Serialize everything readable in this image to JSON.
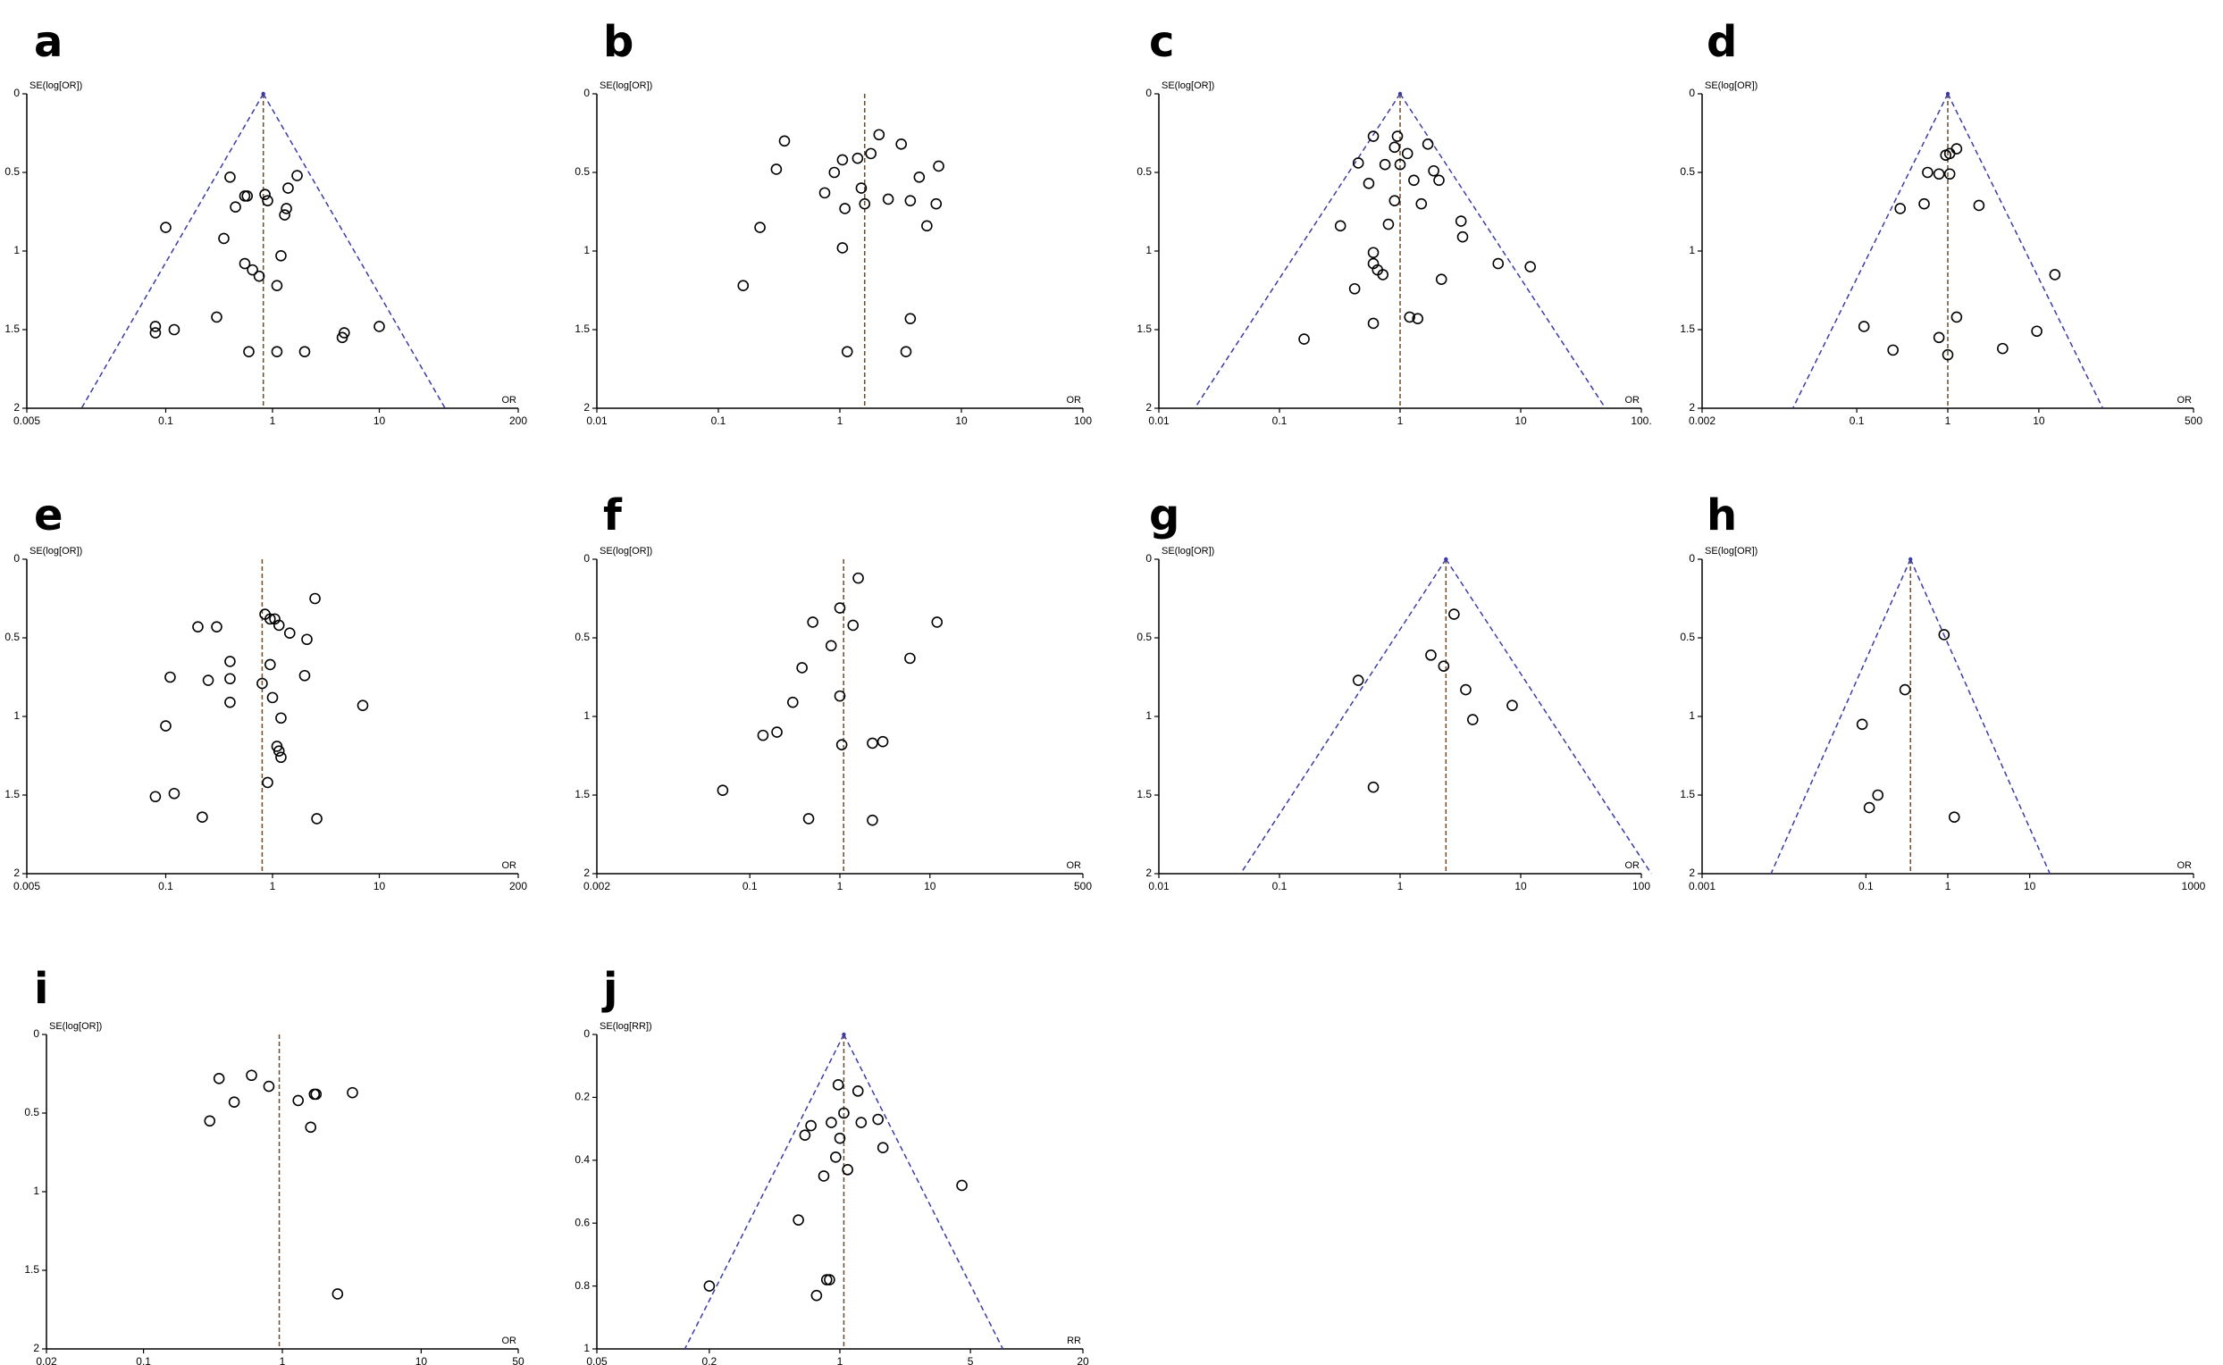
{
  "chart_data": [
    {
      "id": "a",
      "label": "a",
      "type": "scatter",
      "xlabel": "OR",
      "ylabel": "SE(log[OR])",
      "xscale": "log",
      "xlim": [
        0.005,
        200
      ],
      "ylim": [
        0,
        2
      ],
      "xticks": [
        "0.005",
        "0.1",
        "1",
        "10",
        "200"
      ],
      "yticks": [
        "0",
        "0.5",
        "1",
        "1.5",
        "2"
      ],
      "pooled": 0.82,
      "funnel": true,
      "points": [
        [
          0.1,
          0.85
        ],
        [
          0.08,
          1.48
        ],
        [
          0.08,
          1.52
        ],
        [
          0.12,
          1.5
        ],
        [
          0.4,
          0.53
        ],
        [
          0.45,
          0.72
        ],
        [
          0.55,
          0.65
        ],
        [
          0.58,
          0.65
        ],
        [
          0.35,
          0.92
        ],
        [
          0.55,
          1.08
        ],
        [
          0.65,
          1.12
        ],
        [
          0.75,
          1.16
        ],
        [
          0.6,
          1.64
        ],
        [
          0.85,
          0.64
        ],
        [
          0.9,
          0.68
        ],
        [
          1.1,
          1.22
        ],
        [
          1.2,
          1.03
        ],
        [
          1.3,
          0.77
        ],
        [
          1.35,
          0.73
        ],
        [
          1.4,
          0.6
        ],
        [
          1.7,
          0.52
        ],
        [
          1.1,
          1.64
        ],
        [
          2.0,
          1.64
        ],
        [
          4.5,
          1.55
        ],
        [
          4.7,
          1.52
        ],
        [
          10,
          1.48
        ],
        [
          0.3,
          1.42
        ]
      ]
    },
    {
      "id": "b",
      "label": "b",
      "type": "scatter",
      "xlabel": "OR",
      "ylabel": "SE(log[OR])",
      "xscale": "log",
      "xlim": [
        0.01,
        100
      ],
      "ylim": [
        0,
        2
      ],
      "xticks": [
        "0.01",
        "0.1",
        "1",
        "10",
        "100"
      ],
      "yticks": [
        "0",
        "0.5",
        "1",
        "1.5",
        "2"
      ],
      "pooled": 1.6,
      "funnel": false,
      "points": [
        [
          0.35,
          0.3
        ],
        [
          0.3,
          0.48
        ],
        [
          0.22,
          0.85
        ],
        [
          0.75,
          0.63
        ],
        [
          0.9,
          0.5
        ],
        [
          1.05,
          0.42
        ],
        [
          1.1,
          0.73
        ],
        [
          1.05,
          0.98
        ],
        [
          0.16,
          1.22
        ],
        [
          1.4,
          0.41
        ],
        [
          1.5,
          0.6
        ],
        [
          1.6,
          0.7
        ],
        [
          1.8,
          0.38
        ],
        [
          2.1,
          0.26
        ],
        [
          2.5,
          0.67
        ],
        [
          3.2,
          0.32
        ],
        [
          3.8,
          0.68
        ],
        [
          4.5,
          0.53
        ],
        [
          5.2,
          0.84
        ],
        [
          6.2,
          0.7
        ],
        [
          6.5,
          0.46
        ],
        [
          1.15,
          1.64
        ],
        [
          3.5,
          1.64
        ],
        [
          3.8,
          1.43
        ]
      ]
    },
    {
      "id": "c",
      "label": "c",
      "type": "scatter",
      "xlabel": "OR",
      "ylabel": "SE(log[OR])",
      "xscale": "log",
      "xlim": [
        0.01,
        100
      ],
      "ylim": [
        0,
        2
      ],
      "xticks": [
        "0.01",
        "0.1",
        "1",
        "10",
        "100."
      ],
      "yticks": [
        "0",
        "0.5",
        "1",
        "1.5",
        "2"
      ],
      "pooled": 1.0,
      "funnel": true,
      "points": [
        [
          0.6,
          0.27
        ],
        [
          0.45,
          0.44
        ],
        [
          0.75,
          0.45
        ],
        [
          0.95,
          0.27
        ],
        [
          0.9,
          0.34
        ],
        [
          1.0,
          0.45
        ],
        [
          1.15,
          0.38
        ],
        [
          1.3,
          0.55
        ],
        [
          1.7,
          0.32
        ],
        [
          1.9,
          0.49
        ],
        [
          2.1,
          0.55
        ],
        [
          0.55,
          0.57
        ],
        [
          0.9,
          0.68
        ],
        [
          1.5,
          0.7
        ],
        [
          0.8,
          0.83
        ],
        [
          0.32,
          0.84
        ],
        [
          0.6,
          1.01
        ],
        [
          0.6,
          1.08
        ],
        [
          0.65,
          1.12
        ],
        [
          0.72,
          1.15
        ],
        [
          0.42,
          1.24
        ],
        [
          3.2,
          0.81
        ],
        [
          3.3,
          0.91
        ],
        [
          2.2,
          1.18
        ],
        [
          6.5,
          1.08
        ],
        [
          12,
          1.1
        ],
        [
          0.16,
          1.56
        ],
        [
          0.6,
          1.46
        ],
        [
          1.2,
          1.42
        ],
        [
          1.4,
          1.43
        ]
      ]
    },
    {
      "id": "d",
      "label": "d",
      "type": "scatter",
      "xlabel": "OR",
      "ylabel": "SE(log[OR])",
      "xscale": "log",
      "xlim": [
        0.002,
        500
      ],
      "ylim": [
        0,
        2
      ],
      "xticks": [
        "0.002",
        "0.1",
        "1",
        "10",
        "500"
      ],
      "yticks": [
        "0",
        "0.5",
        "1",
        "1.5",
        "2"
      ],
      "pooled": 1.0,
      "funnel": true,
      "points": [
        [
          0.95,
          0.39
        ],
        [
          1.05,
          0.38
        ],
        [
          1.25,
          0.35
        ],
        [
          0.6,
          0.5
        ],
        [
          0.8,
          0.51
        ],
        [
          0.3,
          0.73
        ],
        [
          0.55,
          0.7
        ],
        [
          1.05,
          0.51
        ],
        [
          2.2,
          0.71
        ],
        [
          15,
          1.15
        ],
        [
          0.12,
          1.48
        ],
        [
          0.25,
          1.63
        ],
        [
          0.8,
          1.55
        ],
        [
          1.0,
          1.66
        ],
        [
          1.25,
          1.42
        ],
        [
          4.0,
          1.62
        ],
        [
          9.5,
          1.51
        ]
      ]
    },
    {
      "id": "e",
      "label": "e",
      "type": "scatter",
      "xlabel": "OR",
      "ylabel": "SE(log[OR])",
      "xscale": "log",
      "xlim": [
        0.005,
        200
      ],
      "ylim": [
        0,
        2
      ],
      "xticks": [
        "0.005",
        "0.1",
        "1",
        "10",
        "200"
      ],
      "yticks": [
        "0",
        "0.5",
        "1",
        "1.5",
        "2"
      ],
      "pooled": 0.8,
      "funnel": false,
      "points": [
        [
          0.2,
          0.43
        ],
        [
          0.3,
          0.43
        ],
        [
          0.11,
          0.75
        ],
        [
          0.4,
          0.65
        ],
        [
          0.25,
          0.77
        ],
        [
          0.4,
          0.76
        ],
        [
          0.4,
          0.91
        ],
        [
          0.1,
          1.06
        ],
        [
          0.85,
          0.35
        ],
        [
          0.95,
          0.38
        ],
        [
          1.05,
          0.38
        ],
        [
          1.15,
          0.42
        ],
        [
          1.45,
          0.47
        ],
        [
          2.1,
          0.51
        ],
        [
          2.5,
          0.25
        ],
        [
          0.95,
          0.67
        ],
        [
          2.0,
          0.74
        ],
        [
          0.8,
          0.79
        ],
        [
          1.0,
          0.88
        ],
        [
          1.2,
          1.01
        ],
        [
          1.1,
          1.19
        ],
        [
          1.15,
          1.22
        ],
        [
          1.2,
          1.26
        ],
        [
          0.9,
          1.42
        ],
        [
          7.0,
          0.93
        ],
        [
          0.08,
          1.51
        ],
        [
          0.12,
          1.49
        ],
        [
          0.22,
          1.64
        ],
        [
          2.6,
          1.65
        ]
      ]
    },
    {
      "id": "f",
      "label": "f",
      "type": "scatter",
      "xlabel": "OR",
      "ylabel": "SE(log[OR])",
      "xscale": "log",
      "xlim": [
        0.002,
        500
      ],
      "ylim": [
        0,
        2
      ],
      "xticks": [
        "0.002",
        "0.1",
        "1",
        "10",
        "500"
      ],
      "yticks": [
        "0",
        "0.5",
        "1",
        "1.5",
        "2"
      ],
      "pooled": 1.1,
      "funnel": false,
      "points": [
        [
          1.6,
          0.12
        ],
        [
          1.0,
          0.31
        ],
        [
          0.5,
          0.4
        ],
        [
          1.4,
          0.42
        ],
        [
          0.8,
          0.55
        ],
        [
          0.38,
          0.69
        ],
        [
          6.0,
          0.63
        ],
        [
          12,
          0.4
        ],
        [
          0.3,
          0.91
        ],
        [
          1.0,
          0.87
        ],
        [
          0.2,
          1.1
        ],
        [
          0.14,
          1.12
        ],
        [
          1.05,
          1.18
        ],
        [
          2.3,
          1.17
        ],
        [
          3.0,
          1.16
        ],
        [
          0.05,
          1.47
        ],
        [
          0.45,
          1.65
        ],
        [
          2.3,
          1.66
        ]
      ]
    },
    {
      "id": "g",
      "label": "g",
      "type": "scatter",
      "xlabel": "OR",
      "ylabel": "SE(log[OR])",
      "xscale": "log",
      "xlim": [
        0.01,
        100
      ],
      "ylim": [
        0,
        2
      ],
      "xticks": [
        "0.01",
        "0.1",
        "1",
        "10",
        "100"
      ],
      "yticks": [
        "0",
        "0.5",
        "1",
        "1.5",
        "2"
      ],
      "pooled": 2.4,
      "funnel": true,
      "points": [
        [
          2.8,
          0.35
        ],
        [
          1.8,
          0.61
        ],
        [
          2.3,
          0.68
        ],
        [
          0.45,
          0.77
        ],
        [
          3.5,
          0.83
        ],
        [
          8.5,
          0.93
        ],
        [
          4.0,
          1.02
        ],
        [
          0.6,
          1.45
        ]
      ]
    },
    {
      "id": "h",
      "label": "h",
      "type": "scatter",
      "xlabel": "OR",
      "ylabel": "SE(log[OR])",
      "xscale": "log",
      "xlim": [
        0.001,
        1000
      ],
      "ylim": [
        0,
        2
      ],
      "xticks": [
        "0.001",
        "0.1",
        "1",
        "10",
        "1000"
      ],
      "yticks": [
        "0",
        "0.5",
        "1",
        "1.5",
        "2"
      ],
      "pooled": 0.35,
      "funnel": true,
      "points": [
        [
          0.9,
          0.48
        ],
        [
          0.3,
          0.83
        ],
        [
          0.09,
          1.05
        ],
        [
          0.14,
          1.5
        ],
        [
          0.11,
          1.58
        ],
        [
          1.2,
          1.64
        ]
      ]
    },
    {
      "id": "i",
      "label": "i",
      "type": "scatter",
      "xlabel": "OR",
      "ylabel": "SE(log[OR])",
      "xscale": "log",
      "xlim": [
        0.02,
        50
      ],
      "ylim": [
        0,
        2
      ],
      "xticks": [
        "0.02",
        "0.1",
        "1",
        "10",
        "50"
      ],
      "yticks": [
        "0",
        "0.5",
        "1",
        "1.5",
        "2"
      ],
      "pooled": 0.95,
      "funnel": false,
      "points": [
        [
          0.35,
          0.28
        ],
        [
          0.6,
          0.26
        ],
        [
          0.8,
          0.33
        ],
        [
          0.45,
          0.43
        ],
        [
          0.3,
          0.55
        ],
        [
          1.3,
          0.42
        ],
        [
          1.7,
          0.38
        ],
        [
          1.75,
          0.38
        ],
        [
          3.2,
          0.37
        ],
        [
          1.6,
          0.59
        ],
        [
          2.5,
          1.65
        ]
      ]
    },
    {
      "id": "j",
      "label": "j",
      "type": "scatter",
      "xlabel": "RR",
      "ylabel": "SE(log[RR])",
      "xscale": "log",
      "xlim": [
        0.05,
        20
      ],
      "ylim": [
        0,
        1
      ],
      "xticks": [
        "0.05",
        "0.2",
        "1",
        "5",
        "20"
      ],
      "yticks": [
        "0",
        "0.2",
        "0.4",
        "0.6",
        "0.8",
        "1"
      ],
      "pooled": 1.05,
      "funnel": true,
      "points": [
        [
          0.98,
          0.16
        ],
        [
          1.25,
          0.18
        ],
        [
          1.05,
          0.25
        ],
        [
          0.9,
          0.28
        ],
        [
          1.3,
          0.28
        ],
        [
          1.6,
          0.27
        ],
        [
          0.7,
          0.29
        ],
        [
          0.65,
          0.32
        ],
        [
          1.0,
          0.33
        ],
        [
          1.7,
          0.36
        ],
        [
          0.95,
          0.39
        ],
        [
          1.1,
          0.43
        ],
        [
          0.82,
          0.45
        ],
        [
          4.5,
          0.48
        ],
        [
          0.6,
          0.59
        ],
        [
          0.85,
          0.78
        ],
        [
          0.88,
          0.78
        ],
        [
          0.75,
          0.83
        ],
        [
          0.2,
          0.8
        ]
      ]
    }
  ]
}
